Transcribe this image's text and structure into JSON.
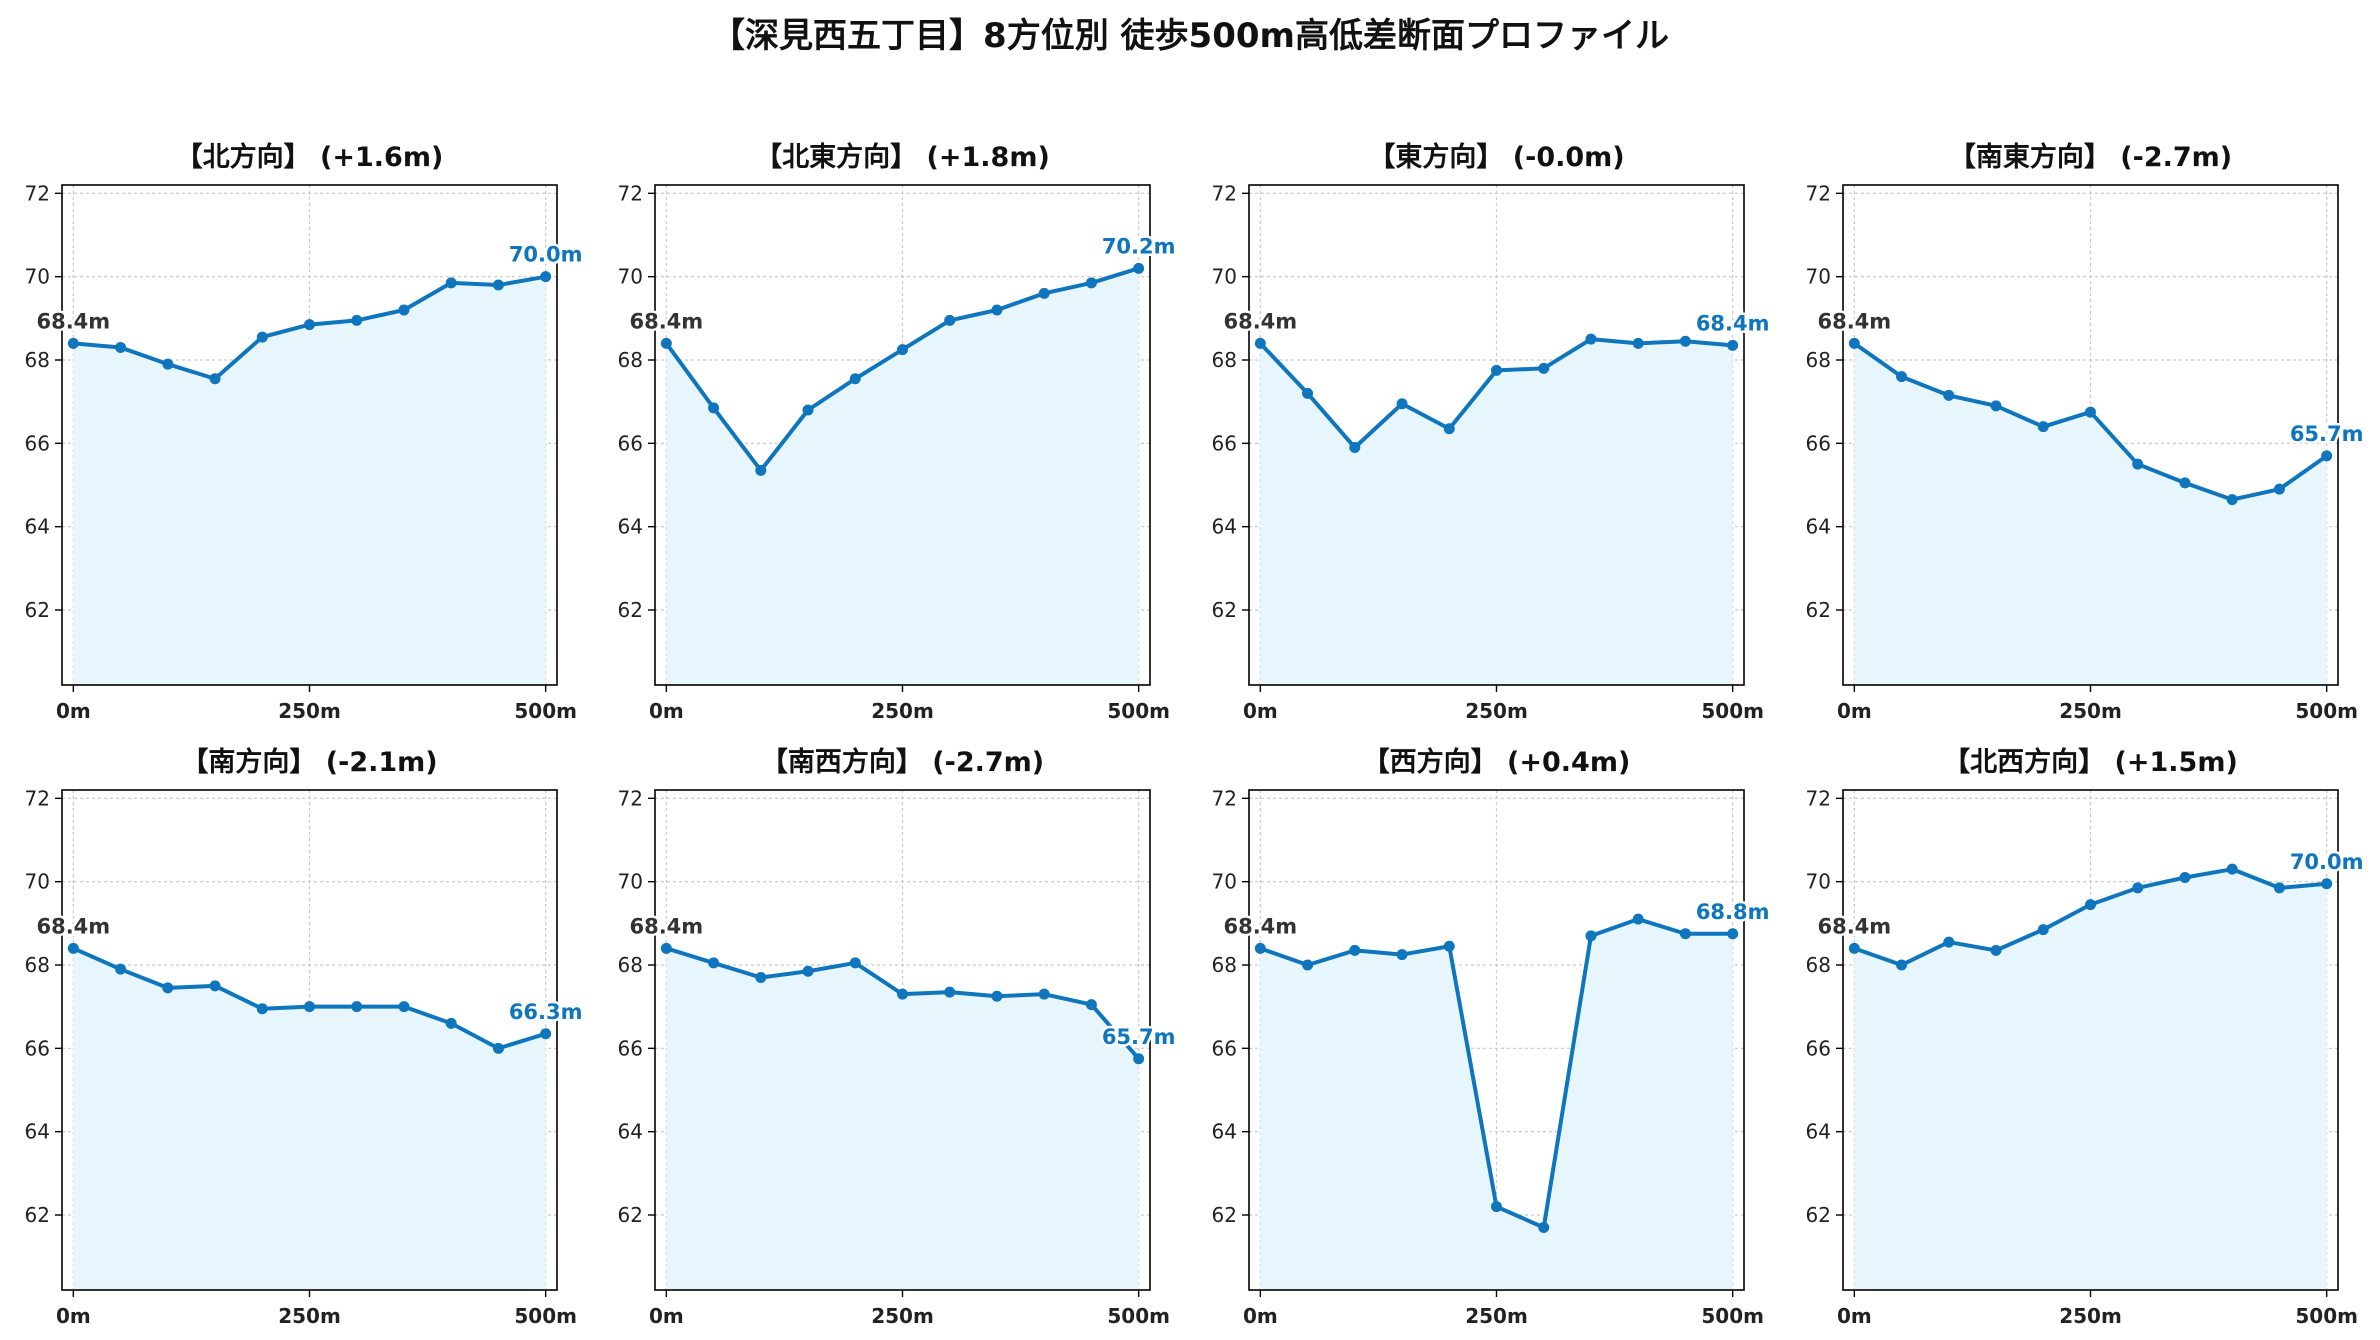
{
  "title": "【深見西五丁目】8方位別 徒歩500m高低差断面プロファイル",
  "colors": {
    "line": "#0f75bc",
    "fill": "#e6f6fc",
    "start_label": "#333333",
    "end_label": "#0f75bc",
    "grid": "#c8c8c8"
  },
  "chart_data": [
    {
      "type": "area",
      "title": "【北方向】 (+1.6m)",
      "x": [
        0,
        50,
        100,
        150,
        200,
        250,
        300,
        350,
        400,
        450,
        500
      ],
      "values": [
        68.4,
        68.3,
        67.9,
        67.55,
        68.55,
        68.85,
        68.95,
        69.2,
        69.85,
        69.8,
        70.0
      ],
      "start_label": "68.4m",
      "end_label": "70.0m",
      "xticks": [
        0,
        250,
        500
      ],
      "xtick_labels": [
        "0m",
        "250m",
        "500m"
      ],
      "yticks": [
        62,
        64,
        66,
        68,
        70,
        72
      ],
      "ylim": [
        60.2,
        72.2
      ],
      "xlim": [
        -12,
        512
      ],
      "grid": true
    },
    {
      "type": "area",
      "title": "【北東方向】 (+1.8m)",
      "x": [
        0,
        50,
        100,
        150,
        200,
        250,
        300,
        350,
        400,
        450,
        500
      ],
      "values": [
        68.4,
        66.85,
        65.35,
        66.8,
        67.55,
        68.25,
        68.95,
        69.2,
        69.6,
        69.85,
        70.2
      ],
      "start_label": "68.4m",
      "end_label": "70.2m",
      "xticks": [
        0,
        250,
        500
      ],
      "xtick_labels": [
        "0m",
        "250m",
        "500m"
      ],
      "yticks": [
        62,
        64,
        66,
        68,
        70,
        72
      ],
      "ylim": [
        60.2,
        72.2
      ],
      "xlim": [
        -12,
        512
      ],
      "grid": true
    },
    {
      "type": "area",
      "title": "【東方向】 (-0.0m)",
      "x": [
        0,
        50,
        100,
        150,
        200,
        250,
        300,
        350,
        400,
        450,
        500
      ],
      "values": [
        68.4,
        67.2,
        65.9,
        66.95,
        66.35,
        67.75,
        67.8,
        68.5,
        68.4,
        68.45,
        68.35
      ],
      "start_label": "68.4m",
      "end_label": "68.4m",
      "xticks": [
        0,
        250,
        500
      ],
      "xtick_labels": [
        "0m",
        "250m",
        "500m"
      ],
      "yticks": [
        62,
        64,
        66,
        68,
        70,
        72
      ],
      "ylim": [
        60.2,
        72.2
      ],
      "xlim": [
        -12,
        512
      ],
      "grid": true
    },
    {
      "type": "area",
      "title": "【南東方向】 (-2.7m)",
      "x": [
        0,
        50,
        100,
        150,
        200,
        250,
        300,
        350,
        400,
        450,
        500
      ],
      "values": [
        68.4,
        67.6,
        67.15,
        66.9,
        66.4,
        66.75,
        65.5,
        65.05,
        64.65,
        64.9,
        65.7
      ],
      "start_label": "68.4m",
      "end_label": "65.7m",
      "xticks": [
        0,
        250,
        500
      ],
      "xtick_labels": [
        "0m",
        "250m",
        "500m"
      ],
      "yticks": [
        62,
        64,
        66,
        68,
        70,
        72
      ],
      "ylim": [
        60.2,
        72.2
      ],
      "xlim": [
        -12,
        512
      ],
      "grid": true
    },
    {
      "type": "area",
      "title": "【南方向】 (-2.1m)",
      "x": [
        0,
        50,
        100,
        150,
        200,
        250,
        300,
        350,
        400,
        450,
        500
      ],
      "values": [
        68.4,
        67.9,
        67.45,
        67.5,
        66.95,
        67.0,
        67.0,
        67.0,
        66.6,
        66.0,
        66.35
      ],
      "start_label": "68.4m",
      "end_label": "66.3m",
      "xticks": [
        0,
        250,
        500
      ],
      "xtick_labels": [
        "0m",
        "250m",
        "500m"
      ],
      "yticks": [
        62,
        64,
        66,
        68,
        70,
        72
      ],
      "ylim": [
        60.2,
        72.2
      ],
      "xlim": [
        -12,
        512
      ],
      "grid": true
    },
    {
      "type": "area",
      "title": "【南西方向】 (-2.7m)",
      "x": [
        0,
        50,
        100,
        150,
        200,
        250,
        300,
        350,
        400,
        450,
        500
      ],
      "values": [
        68.4,
        68.05,
        67.7,
        67.85,
        68.05,
        67.3,
        67.35,
        67.25,
        67.3,
        67.05,
        65.75
      ],
      "start_label": "68.4m",
      "end_label": "65.7m",
      "xticks": [
        0,
        250,
        500
      ],
      "xtick_labels": [
        "0m",
        "250m",
        "500m"
      ],
      "yticks": [
        62,
        64,
        66,
        68,
        70,
        72
      ],
      "ylim": [
        60.2,
        72.2
      ],
      "xlim": [
        -12,
        512
      ],
      "grid": true
    },
    {
      "type": "area",
      "title": "【西方向】 (+0.4m)",
      "x": [
        0,
        50,
        100,
        150,
        200,
        250,
        300,
        350,
        400,
        450,
        500
      ],
      "values": [
        68.4,
        68.0,
        68.35,
        68.25,
        68.45,
        62.2,
        61.7,
        68.7,
        69.1,
        68.75,
        68.75
      ],
      "start_label": "68.4m",
      "end_label": "68.8m",
      "xticks": [
        0,
        250,
        500
      ],
      "xtick_labels": [
        "0m",
        "250m",
        "500m"
      ],
      "yticks": [
        62,
        64,
        66,
        68,
        70,
        72
      ],
      "ylim": [
        60.2,
        72.2
      ],
      "xlim": [
        -12,
        512
      ],
      "grid": true
    },
    {
      "type": "area",
      "title": "【北西方向】 (+1.5m)",
      "x": [
        0,
        50,
        100,
        150,
        200,
        250,
        300,
        350,
        400,
        450,
        500
      ],
      "values": [
        68.4,
        68.0,
        68.55,
        68.35,
        68.85,
        69.45,
        69.85,
        70.1,
        70.3,
        69.85,
        69.95
      ],
      "start_label": "68.4m",
      "end_label": "70.0m",
      "xticks": [
        0,
        250,
        500
      ],
      "xtick_labels": [
        "0m",
        "250m",
        "500m"
      ],
      "yticks": [
        62,
        64,
        66,
        68,
        70,
        72
      ],
      "ylim": [
        60.2,
        72.2
      ],
      "xlim": [
        -12,
        512
      ],
      "grid": true
    }
  ]
}
